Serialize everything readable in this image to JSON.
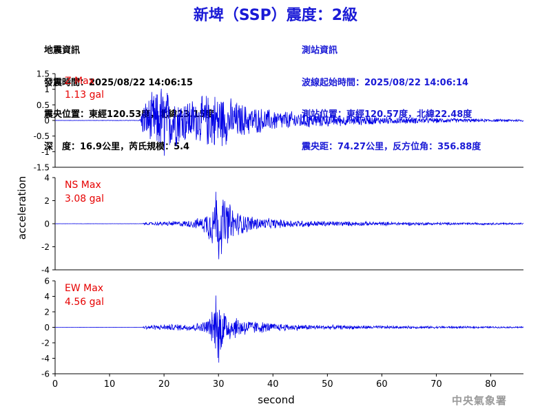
{
  "header": {
    "title": "新埤（SSP）震度：2級"
  },
  "earthquake_info": {
    "heading": "地震資訊",
    "origin_time": "發震時間：2025/08/22 14:06:15",
    "epicenter": "震央位置：東經120.53度，北緯23.15度",
    "depth_magnitude": "深　度：16.9公里，芮氏規模：5.4"
  },
  "station_info": {
    "heading": "測站資訊",
    "waveform_start": "波線起始時間：2025/08/22 14:06:14",
    "station_location": "測站位置：東經120.57度，北緯22.48度",
    "distance_azimuth": "震央距：74.27公里，反方位角：356.88度"
  },
  "agency": "中央氣象署",
  "colors": {
    "title": "#1a1ad6",
    "station_text": "#1a1ad6",
    "trace": "#0000e6",
    "max_label": "#e60000",
    "agency": "#9a9a9a"
  },
  "chart_data": {
    "type": "line",
    "xlabel": "second",
    "ylabel": "acceleration",
    "xlim": [
      0,
      86
    ],
    "x_ticks": [
      "0",
      "10",
      "20",
      "30",
      "40",
      "50",
      "60",
      "70",
      "80"
    ],
    "grid": false,
    "panels": [
      {
        "component": "Z",
        "max_label": "Z Max",
        "max_value": "1.13 gal",
        "max": 1.13,
        "ylim": [
          -1.5,
          1.5
        ],
        "y_ticks": [
          "-1.5",
          "-1",
          "-0.5",
          "0",
          "0.5",
          "1",
          "1.5"
        ],
        "envelope": [
          [
            0,
            0.005
          ],
          [
            15.5,
            0.01
          ],
          [
            16.2,
            0.6
          ],
          [
            18,
            1.0
          ],
          [
            20,
            1.13
          ],
          [
            23,
            0.85
          ],
          [
            26,
            0.75
          ],
          [
            28,
            0.95
          ],
          [
            30,
            1.0
          ],
          [
            33,
            0.7
          ],
          [
            36,
            0.5
          ],
          [
            40,
            0.38
          ],
          [
            45,
            0.3
          ],
          [
            50,
            0.22
          ],
          [
            55,
            0.18
          ],
          [
            60,
            0.14
          ],
          [
            65,
            0.12
          ],
          [
            70,
            0.09
          ],
          [
            75,
            0.07
          ],
          [
            80,
            0.05
          ],
          [
            86,
            0.04
          ]
        ]
      },
      {
        "component": "NS",
        "max_label": "NS Max",
        "max_value": "3.08 gal",
        "max": 3.08,
        "ylim": [
          -4,
          4
        ],
        "y_ticks": [
          "-4",
          "-2",
          "0",
          "2",
          "4"
        ],
        "envelope": [
          [
            0,
            0.005
          ],
          [
            16,
            0.01
          ],
          [
            16.5,
            0.12
          ],
          [
            20,
            0.2
          ],
          [
            24,
            0.3
          ],
          [
            27,
            0.6
          ],
          [
            28.5,
            1.8
          ],
          [
            30,
            3.08
          ],
          [
            31.5,
            2.4
          ],
          [
            33,
            1.3
          ],
          [
            35,
            0.9
          ],
          [
            38,
            0.55
          ],
          [
            42,
            0.4
          ],
          [
            47,
            0.3
          ],
          [
            52,
            0.24
          ],
          [
            60,
            0.18
          ],
          [
            70,
            0.13
          ],
          [
            80,
            0.1
          ],
          [
            86,
            0.08
          ]
        ]
      },
      {
        "component": "EW",
        "max_label": "EW Max",
        "max_value": "4.56 gal",
        "max": 4.56,
        "ylim": [
          -6,
          6
        ],
        "y_ticks": [
          "-6",
          "-4",
          "-2",
          "0",
          "2",
          "4",
          "6"
        ],
        "envelope": [
          [
            0,
            0.005
          ],
          [
            16,
            0.01
          ],
          [
            16.5,
            0.3
          ],
          [
            20,
            0.4
          ],
          [
            24,
            0.5
          ],
          [
            27,
            0.7
          ],
          [
            28.5,
            1.6
          ],
          [
            30,
            4.56
          ],
          [
            31.5,
            2.2
          ],
          [
            33,
            1.6
          ],
          [
            36,
            1.0
          ],
          [
            40,
            0.6
          ],
          [
            45,
            0.4
          ],
          [
            50,
            0.32
          ],
          [
            60,
            0.22
          ],
          [
            70,
            0.16
          ],
          [
            80,
            0.12
          ],
          [
            86,
            0.1
          ]
        ]
      }
    ]
  }
}
